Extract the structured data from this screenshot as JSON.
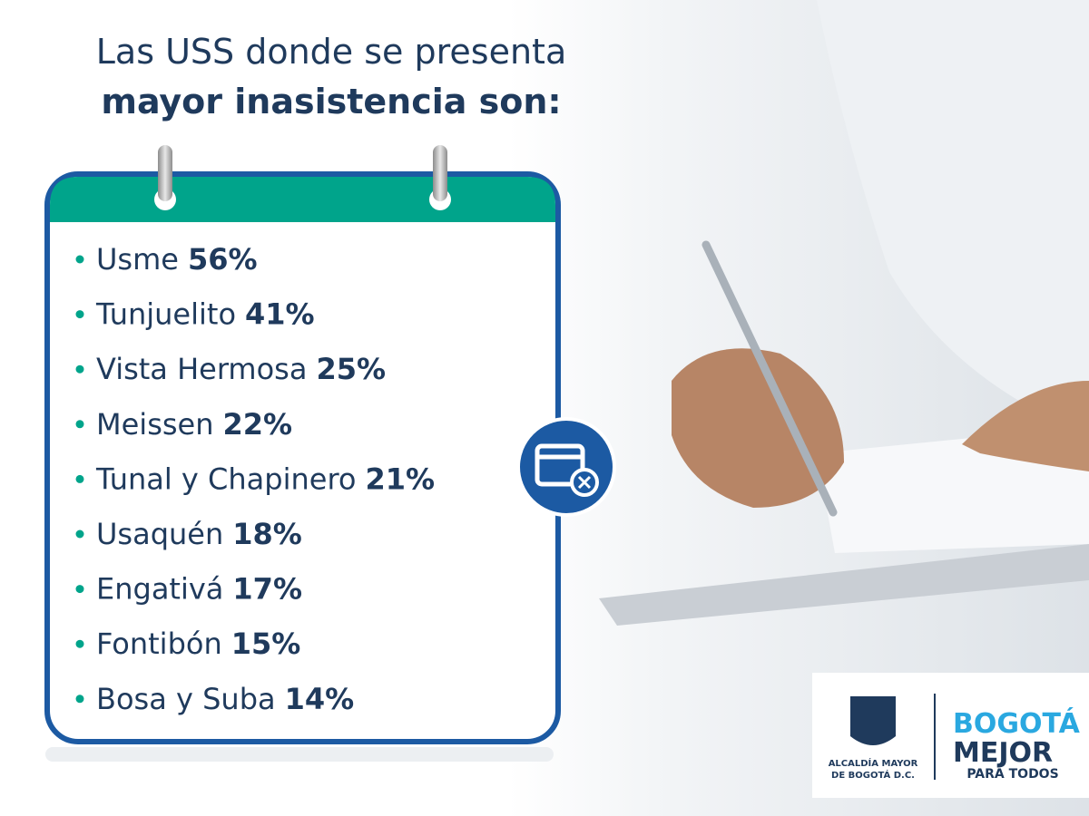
{
  "header": {
    "title_line1": "Las USS donde se presenta",
    "title_line2": "mayor inasistencia son:"
  },
  "list": {
    "items": [
      {
        "name": "Usme",
        "value": "56%"
      },
      {
        "name": "Tunjuelito",
        "value": "41%"
      },
      {
        "name": "Vista Hermosa",
        "value": "25%"
      },
      {
        "name": "Meissen",
        "value": "22%"
      },
      {
        "name": "Tunal y Chapinero",
        "value": "21%"
      },
      {
        "name": "Usaquén",
        "value": "18%"
      },
      {
        "name": "Engativá",
        "value": "17%"
      },
      {
        "name": "Fontibón",
        "value": "15%"
      },
      {
        "name": "Bosa y Suba",
        "value": "14%"
      }
    ]
  },
  "logo": {
    "alcaldia_line1": "ALCALDÍA MAYOR",
    "alcaldia_line2": "DE BOGOTÁ D.C.",
    "brand_line1": "BOGOTÁ",
    "brand_line2": "MEJOR",
    "brand_line3": "PARA TODOS"
  }
}
